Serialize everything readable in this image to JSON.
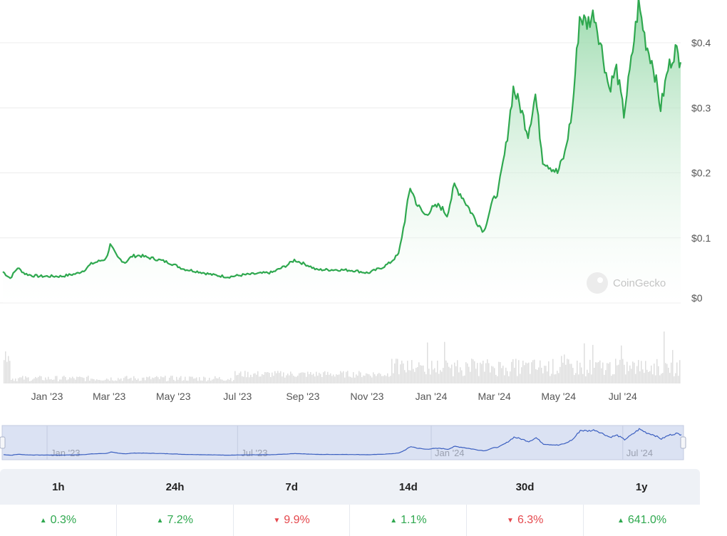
{
  "chart_data": {
    "type": "area",
    "series": [
      {
        "values": [
          [
            "2022-11-20",
            0.048
          ],
          [
            "2022-11-27",
            0.038
          ],
          [
            "2022-12-04",
            0.054
          ],
          [
            "2022-12-11",
            0.045
          ],
          [
            "2022-12-18",
            0.042
          ],
          [
            "2022-12-25",
            0.041
          ],
          [
            "2023-01-01",
            0.041
          ],
          [
            "2023-01-15",
            0.041
          ],
          [
            "2023-01-29",
            0.045
          ],
          [
            "2023-02-05",
            0.05
          ],
          [
            "2023-02-12",
            0.06
          ],
          [
            "2023-02-19",
            0.064
          ],
          [
            "2023-02-26",
            0.068
          ],
          [
            "2023-03-02",
            0.089
          ],
          [
            "2023-03-09",
            0.07
          ],
          [
            "2023-03-16",
            0.062
          ],
          [
            "2023-03-23",
            0.072
          ],
          [
            "2023-03-30",
            0.073
          ],
          [
            "2023-04-06",
            0.07
          ],
          [
            "2023-04-13",
            0.068
          ],
          [
            "2023-04-27",
            0.062
          ],
          [
            "2023-05-11",
            0.052
          ],
          [
            "2023-05-25",
            0.048
          ],
          [
            "2023-06-08",
            0.043
          ],
          [
            "2023-06-22",
            0.04
          ],
          [
            "2023-07-06",
            0.043
          ],
          [
            "2023-07-20",
            0.045
          ],
          [
            "2023-08-03",
            0.047
          ],
          [
            "2023-08-17",
            0.058
          ],
          [
            "2023-08-24",
            0.066
          ],
          [
            "2023-09-07",
            0.057
          ],
          [
            "2023-09-14",
            0.051
          ],
          [
            "2023-10-05",
            0.051
          ],
          [
            "2023-10-19",
            0.05
          ],
          [
            "2023-11-02",
            0.046
          ],
          [
            "2023-11-16",
            0.055
          ],
          [
            "2023-11-23",
            0.062
          ],
          [
            "2023-12-01",
            0.075
          ],
          [
            "2023-12-07",
            0.128
          ],
          [
            "2023-12-12",
            0.178
          ],
          [
            "2023-12-19",
            0.15
          ],
          [
            "2023-12-26",
            0.135
          ],
          [
            "2024-01-02",
            0.145
          ],
          [
            "2024-01-09",
            0.15
          ],
          [
            "2024-01-16",
            0.135
          ],
          [
            "2024-01-23",
            0.18
          ],
          [
            "2024-01-30",
            0.165
          ],
          [
            "2024-02-06",
            0.145
          ],
          [
            "2024-02-13",
            0.125
          ],
          [
            "2024-02-20",
            0.11
          ],
          [
            "2024-02-27",
            0.15
          ],
          [
            "2024-03-05",
            0.175
          ],
          [
            "2024-03-12",
            0.24
          ],
          [
            "2024-03-19",
            0.33
          ],
          [
            "2024-03-26",
            0.3
          ],
          [
            "2024-04-02",
            0.26
          ],
          [
            "2024-04-09",
            0.32
          ],
          [
            "2024-04-16",
            0.22
          ],
          [
            "2024-04-23",
            0.21
          ],
          [
            "2024-04-30",
            0.2
          ],
          [
            "2024-05-07",
            0.23
          ],
          [
            "2024-05-14",
            0.295
          ],
          [
            "2024-05-21",
            0.44
          ],
          [
            "2024-05-28",
            0.43
          ],
          [
            "2024-06-04",
            0.445
          ],
          [
            "2024-06-11",
            0.39
          ],
          [
            "2024-06-18",
            0.33
          ],
          [
            "2024-06-25",
            0.36
          ],
          [
            "2024-07-02",
            0.29
          ],
          [
            "2024-07-09",
            0.37
          ],
          [
            "2024-07-16",
            0.46
          ],
          [
            "2024-07-23",
            0.4
          ],
          [
            "2024-07-30",
            0.365
          ],
          [
            "2024-08-06",
            0.3
          ],
          [
            "2024-08-13",
            0.36
          ],
          [
            "2024-08-20",
            0.39
          ],
          [
            "2024-08-25",
            0.37
          ]
        ]
      }
    ],
    "y_tick_labels": [
      "$0",
      "$0.1",
      "$0.2",
      "$0.3",
      "$0.4"
    ],
    "ylim": [
      0,
      0.4
    ],
    "x_tick_labels": [
      "Jan '23",
      "Mar '23",
      "May '23",
      "Jul '23",
      "Sep '23",
      "Nov '23",
      "Jan '24",
      "Mar '24",
      "May '24",
      "Jul '24"
    ],
    "volume_bars": true,
    "grid": "horizontal",
    "colors": {
      "line": "#2fa84f",
      "fill_top": "#8fd6a3",
      "fill_bottom": "#ffffff",
      "volume": "#dcdcdc",
      "navigator_line": "#3b5fc0"
    }
  },
  "watermark": {
    "text": "CoinGecko"
  },
  "navigator": {
    "tick_labels": [
      "Jan '23",
      "Jul '23",
      "Jan '24",
      "Jul '24"
    ]
  },
  "stats": {
    "headers": [
      "1h",
      "24h",
      "7d",
      "14d",
      "30d",
      "1y"
    ],
    "values": [
      {
        "value": "0.3%",
        "direction": "up"
      },
      {
        "value": "7.2%",
        "direction": "up"
      },
      {
        "value": "9.9%",
        "direction": "down"
      },
      {
        "value": "1.1%",
        "direction": "up"
      },
      {
        "value": "6.3%",
        "direction": "down"
      },
      {
        "value": "641.0%",
        "direction": "up"
      }
    ]
  }
}
